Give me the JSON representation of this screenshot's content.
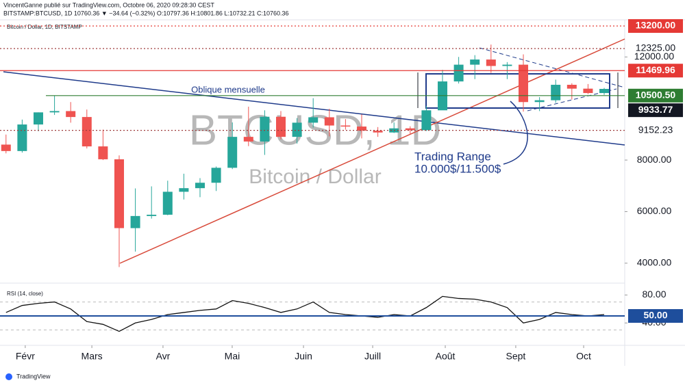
{
  "header": {
    "author_line": "VincentGanne publié sur TradingView.com, Octobre 06, 2020 09:28:30 CEST",
    "symbol_line": "BITSTAMP:BTCUSD, 1D 10760.36 ▼ −34.64 (−0.32%) O:10797.36 H:10801.86 L:10732.21 C:10760.36"
  },
  "footer": "TradingView",
  "chart_data": [
    {
      "type": "candlestick",
      "title": "Bitcoin / Dollar, 1D, BITSTAMP",
      "watermark": "BTCUSD, 1D",
      "watermark_subtitle": "Bitcoin / Dollar",
      "annotations": [
        "Oblique mensuelle",
        "Trading Range",
        "10.000$/11.500$"
      ],
      "up_color": "#26a69a",
      "down_color": "#ef5350",
      "ohlc": [
        [
          8600,
          8990,
          8260,
          8350
        ],
        [
          8350,
          9570,
          8290,
          9380
        ],
        [
          9380,
          9850,
          9120,
          9850
        ],
        [
          9850,
          10500,
          9750,
          9900
        ],
        [
          9900,
          10250,
          9450,
          9670
        ],
        [
          9670,
          9960,
          8450,
          8530
        ],
        [
          8530,
          9180,
          8000,
          8030
        ],
        [
          8030,
          8180,
          3850,
          5360
        ],
        [
          5360,
          6900,
          4450,
          5830
        ],
        [
          5830,
          6980,
          5730,
          5880
        ],
        [
          5880,
          7200,
          5860,
          6770
        ],
        [
          6770,
          7470,
          6470,
          6910
        ],
        [
          6910,
          7300,
          6560,
          7120
        ],
        [
          7120,
          7750,
          6800,
          7700
        ],
        [
          7700,
          9460,
          7650,
          8900
        ],
        [
          8900,
          10070,
          8540,
          8720
        ],
        [
          8720,
          9930,
          8200,
          9680
        ],
        [
          9680,
          9900,
          8800,
          8900
        ],
        [
          8900,
          9630,
          8640,
          9450
        ],
        [
          9450,
          10400,
          9260,
          9660
        ],
        [
          9660,
          9990,
          8920,
          9340
        ],
        [
          9340,
          9590,
          9180,
          9300
        ],
        [
          9300,
          9770,
          8840,
          9140
        ],
        [
          9140,
          9280,
          8900,
          9070
        ],
        [
          9070,
          9460,
          9050,
          9230
        ],
        [
          9230,
          9310,
          9010,
          9160
        ],
        [
          9160,
          10100,
          9130,
          9930
        ],
        [
          9930,
          11500,
          9940,
          11050
        ],
        [
          11050,
          12000,
          10970,
          11700
        ],
        [
          11700,
          12070,
          11140,
          11900
        ],
        [
          11900,
          12480,
          11380,
          11650
        ],
        [
          11650,
          11800,
          11140,
          11700
        ],
        [
          11700,
          12100,
          9880,
          10250
        ],
        [
          10250,
          10440,
          9900,
          10320
        ],
        [
          10320,
          11120,
          10220,
          10920
        ],
        [
          10920,
          10980,
          10350,
          10770
        ],
        [
          10770,
          10950,
          10560,
          10600
        ],
        [
          10600,
          10800,
          10530,
          10760
        ]
      ],
      "ylim": [
        3280,
        13413
      ],
      "yticks": [
        {
          "value": 4000,
          "label": "4000.00"
        },
        {
          "value": 6000,
          "label": "6000.00"
        },
        {
          "value": 8000,
          "label": "8000.00"
        },
        {
          "value": 12000,
          "label": "12000.00"
        }
      ],
      "xlim": [
        0.34,
        38.77
      ],
      "xticks": [
        {
          "value": 1.69,
          "label": "Févr"
        },
        {
          "value": 5.81,
          "label": "Mars"
        },
        {
          "value": 10.21,
          "label": "Avr"
        },
        {
          "value": 14.49,
          "label": "Mai"
        },
        {
          "value": 18.9,
          "label": "Juin"
        },
        {
          "value": 23.18,
          "label": "Juill"
        },
        {
          "value": 27.67,
          "label": "Août"
        },
        {
          "value": 32.03,
          "label": "Sept"
        },
        {
          "value": 36.23,
          "label": "Oct"
        }
      ],
      "levels": [
        {
          "value": 13200,
          "label": "13200.00",
          "color": "#e53935",
          "style": "dotted",
          "box": true
        },
        {
          "value": 12325,
          "label": "12325.00",
          "color": "#9e3a3a",
          "style": "dotted",
          "box": false
        },
        {
          "value": 11469.96,
          "label": "11469.96",
          "color": "#e53935",
          "style": "solid",
          "box": true
        },
        {
          "value": 10500.5,
          "label": "10500.50",
          "color": "#2e7d32",
          "style": "solid",
          "box": true
        },
        {
          "value": 9933.77,
          "label": "9933.77",
          "color": "#131722",
          "style": "none",
          "box": true
        },
        {
          "value": 9152.23,
          "label": "9152.23",
          "color": "#9e3a3a",
          "style": "dotted",
          "box": false
        }
      ]
    },
    {
      "type": "line",
      "title": "RSI (14, close)",
      "color": "#111111",
      "values": [
        55,
        65,
        68,
        70,
        60,
        42,
        38,
        28,
        40,
        45,
        52,
        55,
        58,
        60,
        72,
        68,
        62,
        55,
        60,
        70,
        55,
        52,
        50,
        48,
        52,
        50,
        62,
        78,
        75,
        74,
        70,
        62,
        40,
        45,
        55,
        52,
        50,
        52
      ],
      "ylim": [
        8,
        95
      ],
      "yticks": [
        {
          "value": 40,
          "label": "40.00"
        },
        {
          "value": 80,
          "label": "80.00"
        }
      ],
      "levels": [
        {
          "value": 50,
          "label": "50.00",
          "color": "#1e4e9c"
        }
      ]
    }
  ]
}
